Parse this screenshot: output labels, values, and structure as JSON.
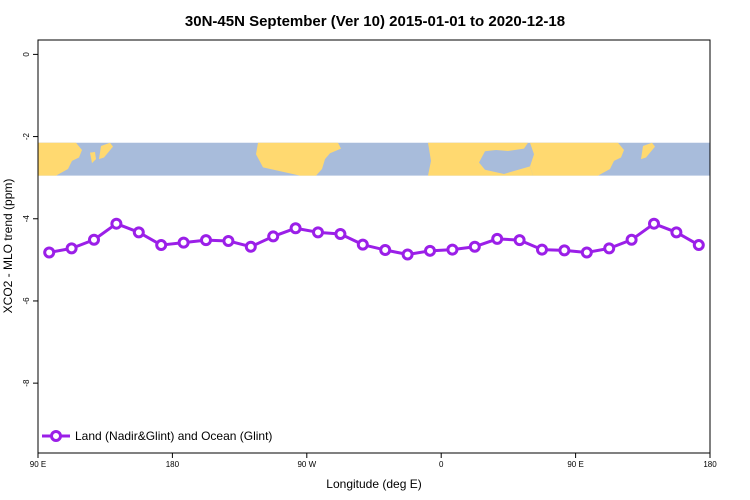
{
  "chart_data": {
    "type": "line",
    "title": "30N-45N September (Ver 10)   2015-01-01 to 2020-12-18",
    "xlabel": "Longitude (deg E)",
    "ylabel": "XCO2 - MLO trend (ppm)",
    "xlim": [
      90,
      540
    ],
    "ylim": [
      -9.7,
      0.35
    ],
    "x_ticks": [
      {
        "value": 90,
        "label": "90 E"
      },
      {
        "value": 180,
        "label": "180"
      },
      {
        "value": 270,
        "label": "90 W"
      },
      {
        "value": 360,
        "label": "0"
      },
      {
        "value": 450,
        "label": "90 E"
      },
      {
        "value": 540,
        "label": "180"
      }
    ],
    "y_ticks": [
      {
        "value": 0,
        "label": "0"
      },
      {
        "value": -2,
        "label": "-2"
      },
      {
        "value": -4,
        "label": "-4"
      },
      {
        "value": -6,
        "label": "-6"
      },
      {
        "value": -8,
        "label": "-8"
      }
    ],
    "series": [
      {
        "name": "Land (Nadir&Glint) and Ocean (Glint)",
        "color": "#9b1fe8",
        "x": [
          97.5,
          112.5,
          127.5,
          142.5,
          157.5,
          172.5,
          187.5,
          202.5,
          217.5,
          232.5,
          247.5,
          262.5,
          277.5,
          292.5,
          307.5,
          322.5,
          337.5,
          352.5,
          367.5,
          382.5,
          397.5,
          412.5,
          427.5,
          442.5,
          457.5,
          472.5,
          487.5,
          502.5,
          517.5,
          532.5
        ],
        "y": [
          -4.82,
          -4.72,
          -4.51,
          -4.12,
          -4.33,
          -4.64,
          -4.58,
          -4.52,
          -4.54,
          -4.68,
          -4.43,
          -4.23,
          -4.33,
          -4.37,
          -4.63,
          -4.76,
          -4.87,
          -4.78,
          -4.75,
          -4.68,
          -4.49,
          -4.52,
          -4.75,
          -4.77,
          -4.82,
          -4.72,
          -4.51,
          -4.12,
          -4.33,
          -4.64
        ]
      }
    ],
    "map_strip": {
      "y_top": -2.15,
      "y_bottom": -2.95,
      "land_color": "#ffd970",
      "ocean_color": "#a8bcdb"
    },
    "legend_position": "bottom-left",
    "grid": false
  }
}
